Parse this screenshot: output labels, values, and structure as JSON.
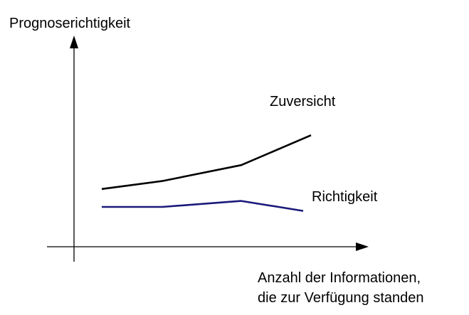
{
  "chart_data": {
    "type": "line",
    "title": "",
    "ylabel": "Prognoserichtigkeit",
    "xlabel": [
      "Anzahl der Informationen,",
      "die zur Verfügung standen"
    ],
    "axis_ticks": false,
    "grid": false,
    "x": [
      0,
      1,
      2,
      3
    ],
    "ylim": [
      0,
      10
    ],
    "series": [
      {
        "name": "Zuversicht",
        "color": "#000000",
        "values": [
          2.9,
          3.3,
          4.1,
          5.6
        ]
      },
      {
        "name": "Richtigkeit",
        "color": "#1a1a7a",
        "values": [
          2.0,
          2.0,
          2.3,
          1.8
        ]
      }
    ]
  }
}
